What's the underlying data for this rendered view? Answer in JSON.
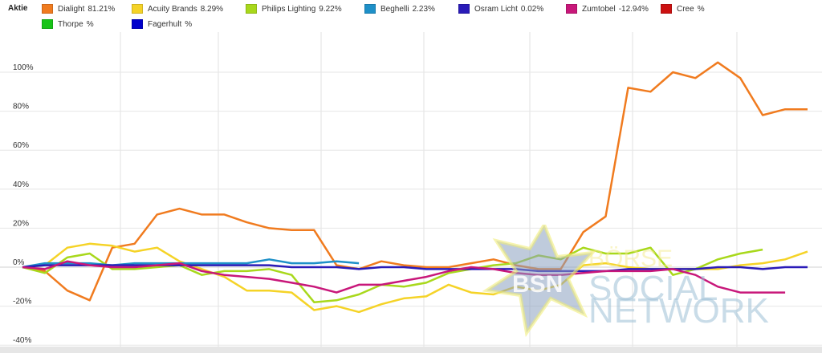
{
  "legend": {
    "title": "Aktie",
    "items": [
      {
        "name": "Dialight",
        "value": "81.21%",
        "color": "#f07b1f"
      },
      {
        "name": "Acuity Brands",
        "value": "8.29%",
        "color": "#f5d327"
      },
      {
        "name": "Philips Lighting",
        "value": "9.22%",
        "color": "#a8d81b"
      },
      {
        "name": "Beghelli",
        "value": "2.23%",
        "color": "#1e90c8"
      },
      {
        "name": "Osram Licht",
        "value": "0.02%",
        "color": "#2a1bb8"
      },
      {
        "name": "Zumtobel",
        "value": "-12.94%",
        "color": "#c8177a"
      },
      {
        "name": "Cree",
        "value": "%",
        "color": "#cc1111"
      },
      {
        "name": "Thorpe",
        "value": "%",
        "color": "#18c418"
      },
      {
        "name": "Fagerhult",
        "value": "%",
        "color": "#0000cc"
      }
    ]
  },
  "watermark": {
    "logo": "BSN",
    "line1": "BÖRSE",
    "line2": "SOCIAL",
    "line3": "NETWORK"
  },
  "chart_data": {
    "type": "line",
    "yticks": [
      "100%",
      "80%",
      "60%",
      "40%",
      "20%",
      "0%",
      "-20%",
      "-40%"
    ],
    "ylim": [
      -40,
      120
    ],
    "grid": true,
    "legend_position": "top",
    "x": [
      0,
      1,
      2,
      3,
      4,
      5,
      6,
      7,
      8,
      9,
      10,
      11,
      12,
      13,
      14,
      15,
      16,
      17,
      18,
      19,
      20,
      21,
      22,
      23,
      24,
      25,
      26,
      27,
      28,
      29,
      30,
      31,
      32,
      33,
      34,
      35,
      36,
      37,
      38,
      39,
      40,
      41,
      42,
      43,
      44,
      45,
      46,
      47,
      48
    ],
    "series": [
      {
        "name": "Dialight",
        "color": "#f07b1f",
        "values": [
          0,
          -2,
          -12,
          -17,
          10,
          12,
          27,
          30,
          27,
          27,
          23,
          20,
          19,
          19,
          1,
          -1,
          3,
          1,
          0,
          0,
          2,
          4,
          1,
          -1,
          -1,
          18,
          26,
          92,
          90,
          100,
          97,
          105,
          97,
          78,
          81,
          81,
          null,
          null,
          null,
          null,
          null,
          null,
          null,
          null,
          null,
          null,
          null,
          null,
          null
        ]
      },
      {
        "name": "Acuity Brands",
        "color": "#f5d327",
        "values": [
          0,
          1,
          10,
          12,
          11,
          8,
          10,
          3,
          -1,
          -5,
          -12,
          -12,
          -13,
          -22,
          -20,
          -23,
          -19,
          -16,
          -15,
          -9,
          -13,
          -14,
          -10,
          -12,
          -9,
          1,
          2,
          0,
          -1,
          -1,
          -1,
          -1,
          1,
          2,
          4,
          8,
          null,
          null,
          null,
          null,
          null,
          null,
          null,
          null,
          null,
          null,
          null,
          null,
          null
        ]
      },
      {
        "name": "Philips Lighting",
        "color": "#a8d81b",
        "values": [
          0,
          -3,
          5,
          7,
          -1,
          -1,
          0,
          1,
          -4,
          -2,
          -2,
          -1,
          -4,
          -18,
          -17,
          -14,
          -9,
          -10,
          -8,
          -3,
          -1,
          1,
          2,
          6,
          4,
          10,
          7,
          7,
          10,
          -4,
          -1,
          4,
          7,
          9,
          null,
          null,
          null,
          null,
          null,
          null,
          null,
          null,
          null,
          null,
          null,
          null,
          null,
          null,
          null
        ]
      },
      {
        "name": "Beghelli",
        "color": "#1e90c8",
        "values": [
          0,
          2,
          2,
          2,
          1,
          2,
          2,
          2,
          2,
          2,
          2,
          4,
          2,
          2,
          3,
          2,
          null,
          null,
          null,
          null,
          null,
          null,
          null,
          null,
          null,
          null,
          null,
          null,
          null,
          null,
          null,
          null,
          null,
          null,
          null,
          null,
          null,
          null,
          null,
          null,
          null,
          null,
          null,
          null,
          null,
          null,
          null,
          null,
          null
        ]
      },
      {
        "name": "Osram Licht",
        "color": "#2a1bb8",
        "values": [
          0,
          1,
          1,
          1,
          1,
          1,
          1,
          1,
          1,
          1,
          1,
          1,
          0,
          0,
          0,
          -1,
          0,
          0,
          -1,
          -1,
          -1,
          -1,
          -1,
          -2,
          -2,
          -2,
          -2,
          -1,
          -1,
          -1,
          -1,
          0,
          0,
          -1,
          0,
          0,
          null,
          null,
          null,
          null,
          null,
          null,
          null,
          null,
          null,
          null,
          null,
          null,
          null
        ]
      },
      {
        "name": "Zumtobel",
        "color": "#c8177a",
        "values": [
          0,
          -1,
          3,
          1,
          0,
          0,
          1,
          2,
          -2,
          -4,
          -5,
          -6,
          -8,
          -10,
          -13,
          -9,
          -9,
          -7,
          -5,
          -2,
          0,
          -1,
          -3,
          -4,
          -4,
          -3,
          -2,
          -2,
          -2,
          -1,
          -4,
          -10,
          -13,
          -13,
          -13,
          null,
          null,
          null,
          null,
          null,
          null,
          null,
          null,
          null,
          null,
          null,
          null,
          null,
          null
        ]
      }
    ]
  }
}
